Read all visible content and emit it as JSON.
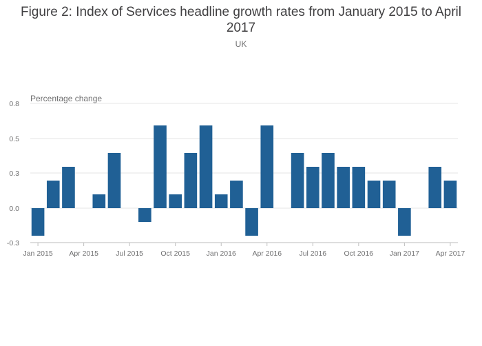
{
  "title": "Figure 2: Index of Services headline growth rates from January 2015 to April 2017",
  "subtitle": "UK",
  "colors": {
    "bar": "#206095",
    "grid": "#e6e6e6",
    "axis": "#bebebe"
  },
  "chart_data": {
    "type": "bar",
    "ylabel": "Percentage change",
    "xlabel": "",
    "ylim": [
      -0.3,
      0.8
    ],
    "yticks": [
      "0.8",
      "0.5",
      "0.3",
      "0.0",
      "-0.3"
    ],
    "grid": true,
    "categories": [
      "Jan 2015",
      "Feb 2015",
      "Mar 2015",
      "Apr 2015",
      "May 2015",
      "Jun 2015",
      "Jul 2015",
      "Aug 2015",
      "Sep 2015",
      "Oct 2015",
      "Nov 2015",
      "Dec 2015",
      "Jan 2016",
      "Feb 2016",
      "Mar 2016",
      "Apr 2016",
      "May 2016",
      "Jun 2016",
      "Jul 2016",
      "Aug 2016",
      "Sep 2016",
      "Oct 2016",
      "Nov 2016",
      "Dec 2016",
      "Jan 2017",
      "Feb 2017",
      "Mar 2017",
      "Apr 2017"
    ],
    "xtick_labels": [
      "Jan 2015",
      "Apr 2015",
      "Jul 2015",
      "Oct 2015",
      "Jan 2016",
      "Apr 2016",
      "Jul 2016",
      "Oct 2016",
      "Jan 2017",
      "Apr 2017"
    ],
    "values": [
      -0.2,
      0.2,
      0.3,
      0.0,
      0.1,
      0.4,
      0.0,
      -0.1,
      0.6,
      0.1,
      0.4,
      0.6,
      0.1,
      0.2,
      -0.2,
      0.6,
      0.0,
      0.4,
      0.3,
      0.4,
      0.3,
      0.3,
      0.2,
      0.2,
      -0.2,
      0.0,
      0.3,
      0.2
    ]
  }
}
